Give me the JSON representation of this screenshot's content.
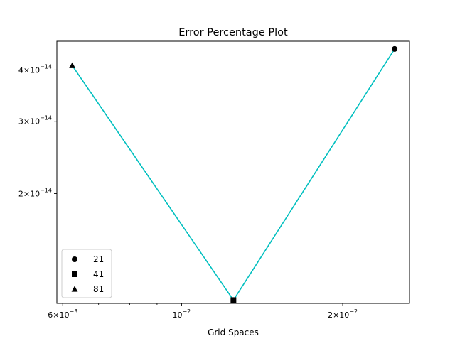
{
  "chart_data": {
    "type": "line",
    "title": "Error Percentage Plot",
    "xlabel": "Grid Spaces",
    "ylabel": "",
    "x_scale": "log",
    "y_scale": "log",
    "xlim": [
      0.00585,
      0.02665
    ],
    "ylim": [
      1.08e-14,
      4.7e-14
    ],
    "grid": false,
    "legend_position": "lower-left",
    "series": [
      {
        "x": [
          0.00625,
          0.0125,
          0.025
        ],
        "y": [
          4.1e-14,
          1.1e-14,
          4.5e-14
        ],
        "color": "#00BFBF"
      }
    ],
    "markers": [
      {
        "label": "21",
        "marker": "circle",
        "x": 0.025,
        "y": 4.5e-14
      },
      {
        "label": "41",
        "marker": "square",
        "x": 0.0125,
        "y": 1.1e-14
      },
      {
        "label": "81",
        "marker": "triangle",
        "x": 0.00625,
        "y": 4.1e-14
      }
    ],
    "x_major_ticks": [
      {
        "value": 0.006,
        "mant": "6",
        "exp": "−3"
      },
      {
        "value": 0.01,
        "mant": "10",
        "exp": "−2"
      },
      {
        "value": 0.02,
        "mant": "2",
        "exp": "−2"
      }
    ],
    "x_minor_ticks": [
      0.007,
      0.008,
      0.009
    ],
    "y_ticks": [
      {
        "value": 4e-14,
        "mant": "4",
        "exp": "−14"
      },
      {
        "value": 3e-14,
        "mant": "3",
        "exp": "−14"
      },
      {
        "value": 2e-14,
        "mant": "2",
        "exp": "−14"
      }
    ],
    "colors": {
      "line": "#00BFBF",
      "marker": "#000000"
    }
  }
}
